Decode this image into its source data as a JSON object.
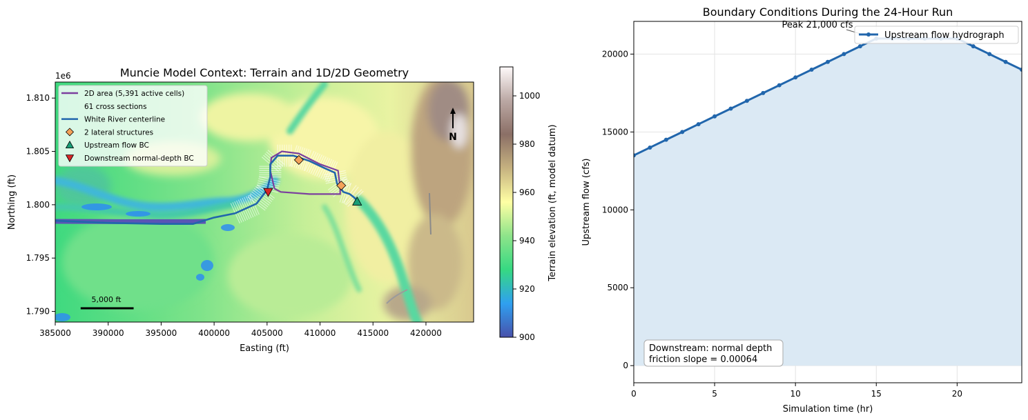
{
  "chart_data": [
    {
      "type": "map",
      "title": "Muncie Model Context: Terrain and 1D/2D Geometry",
      "xlabel": "Easting (ft)",
      "ylabel": "Northing (ft)",
      "y_offset_label": "1e6",
      "xlim": [
        385000,
        424500
      ],
      "ylim": [
        1.789,
        1.8115
      ],
      "x_ticks": [
        385000,
        390000,
        395000,
        400000,
        405000,
        410000,
        415000,
        420000
      ],
      "x_tick_labels": [
        "385000",
        "390000",
        "395000",
        "400000",
        "405000",
        "410000",
        "415000",
        "420000"
      ],
      "y_ticks": [
        1.79,
        1.795,
        1.8,
        1.805,
        1.81
      ],
      "y_tick_labels": [
        "1.790",
        "1.795",
        "1.800",
        "1.805",
        "1.810"
      ],
      "legend_position": "top-left",
      "legend": [
        {
          "label": "2D area (5,391 active cells)",
          "symbol": "line",
          "color": "#7b3f9e"
        },
        {
          "label": "61 cross sections",
          "symbol": "none",
          "color": "#ffffff"
        },
        {
          "label": "White River centerline",
          "symbol": "line",
          "color": "#2166ac"
        },
        {
          "label": "2 lateral structures",
          "symbol": "diamond",
          "color": "#f4a259"
        },
        {
          "label": "Upstream flow BC",
          "symbol": "triangle-up",
          "color": "#1a9e77"
        },
        {
          "label": "Downstream normal-depth BC",
          "symbol": "triangle-down",
          "color": "#d62728"
        }
      ],
      "river_centerline": [
        [
          385000,
          1.7985
        ],
        [
          390000,
          1.7983
        ],
        [
          395000,
          1.7982
        ],
        [
          398000,
          1.7982
        ],
        [
          400000,
          1.7988
        ],
        [
          402000,
          1.7992
        ],
        [
          404000,
          1.8001
        ],
        [
          405000,
          1.8014
        ],
        [
          405300,
          1.8026
        ],
        [
          405300,
          1.8038
        ],
        [
          406000,
          1.8046
        ],
        [
          407500,
          1.8046
        ],
        [
          409000,
          1.8041
        ],
        [
          410500,
          1.8034
        ],
        [
          411400,
          1.803
        ],
        [
          411600,
          1.802
        ],
        [
          412200,
          1.8012
        ],
        [
          412800,
          1.801
        ],
        [
          413200,
          1.8007
        ],
        [
          413500,
          1.8004
        ]
      ],
      "area_2d_boundary": [
        [
          405700,
          1.8015
        ],
        [
          405300,
          1.8032
        ],
        [
          405400,
          1.8044
        ],
        [
          406400,
          1.805
        ],
        [
          408000,
          1.8048
        ],
        [
          410000,
          1.8038
        ],
        [
          411700,
          1.8032
        ],
        [
          411900,
          1.8016
        ],
        [
          411900,
          1.801
        ],
        [
          409000,
          1.801
        ],
        [
          406300,
          1.8012
        ],
        [
          405700,
          1.8015
        ]
      ],
      "lateral_structures": [
        [
          408000,
          1.8042
        ],
        [
          412000,
          1.8018
        ]
      ],
      "upstream_bc": [
        413500,
        1.8003
      ],
      "downstream_bc": [
        405100,
        1.8012
      ],
      "scale_bar": {
        "label": "5,000 ft",
        "length_ft": 5000,
        "start_x": 387400,
        "y": 1.7902
      },
      "north_arrow": {
        "label": "N"
      },
      "colorbar": {
        "label": "Terrain elevation (ft, model datum)",
        "range": [
          900,
          1012
        ],
        "ticks": [
          900,
          920,
          940,
          960,
          980,
          1000
        ],
        "tick_labels": [
          "900",
          "920",
          "940",
          "960",
          "980",
          "1000"
        ],
        "colors": [
          "#4851ab",
          "#2fa0f0",
          "#36d982",
          "#8ee48a",
          "#ffffa4",
          "#c6b280",
          "#8b6f66",
          "#bba8a4",
          "#fffafa"
        ]
      }
    },
    {
      "type": "area",
      "title": "Boundary Conditions During the 24-Hour Run",
      "xlabel": "Simulation time (hr)",
      "ylabel": "Upstream flow (cfs)",
      "xlim": [
        0,
        24
      ],
      "ylim": [
        -1100,
        22100
      ],
      "x_ticks": [
        0,
        5,
        10,
        15,
        20
      ],
      "x_tick_labels": [
        "0",
        "5",
        "10",
        "15",
        "20"
      ],
      "y_ticks": [
        0,
        5000,
        10000,
        15000,
        20000
      ],
      "y_tick_labels": [
        "0",
        "5000",
        "10000",
        "15000",
        "20000"
      ],
      "grid": true,
      "legend_position": "top-right",
      "series": [
        {
          "name": "Upstream flow hydrograph",
          "color": "#2166ac",
          "fill_color": "#dbe9f4",
          "x": [
            0,
            1,
            2,
            3,
            4,
            5,
            6,
            7,
            8,
            9,
            10,
            11,
            12,
            13,
            14,
            15,
            16,
            17,
            18,
            19,
            20,
            21,
            22,
            23,
            24
          ],
          "values": [
            13500,
            14000,
            14500,
            15000,
            15500,
            16000,
            16500,
            17000,
            17500,
            18000,
            18500,
            19000,
            19500,
            20000,
            20500,
            21000,
            21000,
            21000,
            21000,
            21000,
            21000,
            20500,
            20000,
            19500,
            19000
          ]
        }
      ],
      "annotations": [
        {
          "text": "Peak 21,000 cfs",
          "x": 15,
          "y": 21000
        },
        {
          "text": "Downstream: normal depth",
          "position": "bottom-left"
        },
        {
          "text": "friction slope = 0.00064",
          "position": "bottom-left"
        }
      ]
    }
  ]
}
